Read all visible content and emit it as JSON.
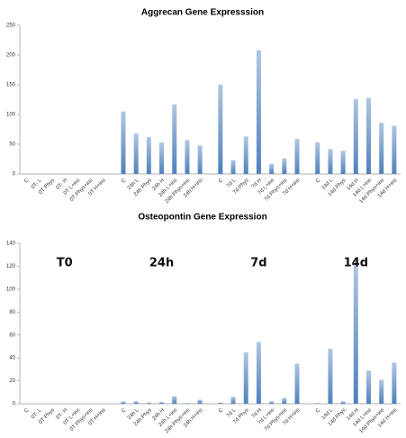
{
  "chart_data": [
    {
      "type": "bar",
      "title": "Aggrecan Gene Expresssion",
      "color": "#4f81bd",
      "categories": [
        "C",
        "0T- L",
        "0T Phys",
        "0T- H",
        "0T L+ins",
        "0T Phys+ins",
        "0T H+ins",
        "C",
        "24h L",
        "24h Phys",
        "24h H",
        "24h L+ins",
        "24h Phys+ins",
        "24h H+ins",
        "C",
        "7d L",
        "7d Phys",
        "7d H",
        "7d L+ins",
        "7d Phys+ins",
        "7d H+ins",
        "C",
        "14d L",
        "14d Phys",
        "14d H",
        "14d L+ins",
        "14d Phys+ins",
        "14d H+ins"
      ],
      "values": [
        0,
        0,
        0,
        0,
        0,
        0,
        0,
        105,
        68,
        62,
        53,
        117,
        57,
        48,
        150,
        23,
        63,
        208,
        17,
        26,
        59,
        53,
        42,
        39,
        126,
        128,
        86,
        81
      ],
      "ylim": [
        0,
        250
      ],
      "yticks": [
        0,
        50,
        100,
        150,
        200,
        250
      ]
    },
    {
      "type": "bar",
      "title": "Osteopontin Gene Expression",
      "color": "#4f81bd",
      "annotations": [
        "T0",
        "24h",
        "7d",
        "14d"
      ],
      "categories": [
        "C",
        "0T- L",
        "0T Phys",
        "0T- H",
        "0T L+ins",
        "0T Phys+ins",
        "0T H+ins",
        "C",
        "24h L",
        "24h Phys",
        "24h H",
        "24h L+ins",
        "24h Phys+ins",
        "24h H+ins",
        "C",
        "7d L",
        "7d Phys",
        "7d H",
        "7d L+ins",
        "7d Phys+ins",
        "7d H+ins",
        "C",
        "14d L",
        "14d Phys",
        "14d H",
        "14d L+ins",
        "14d Phys+ins",
        "14d H+ins"
      ],
      "values": [
        0,
        0,
        0,
        0,
        0,
        0,
        0,
        2,
        2,
        1,
        1.5,
        6.5,
        0.5,
        3.5,
        1,
        6,
        45,
        54,
        2,
        5,
        35,
        0.5,
        48,
        2,
        125,
        29,
        21,
        36
      ],
      "ylim": [
        0,
        140
      ],
      "yticks": [
        0,
        20,
        40,
        60,
        80,
        100,
        120,
        140
      ]
    }
  ]
}
